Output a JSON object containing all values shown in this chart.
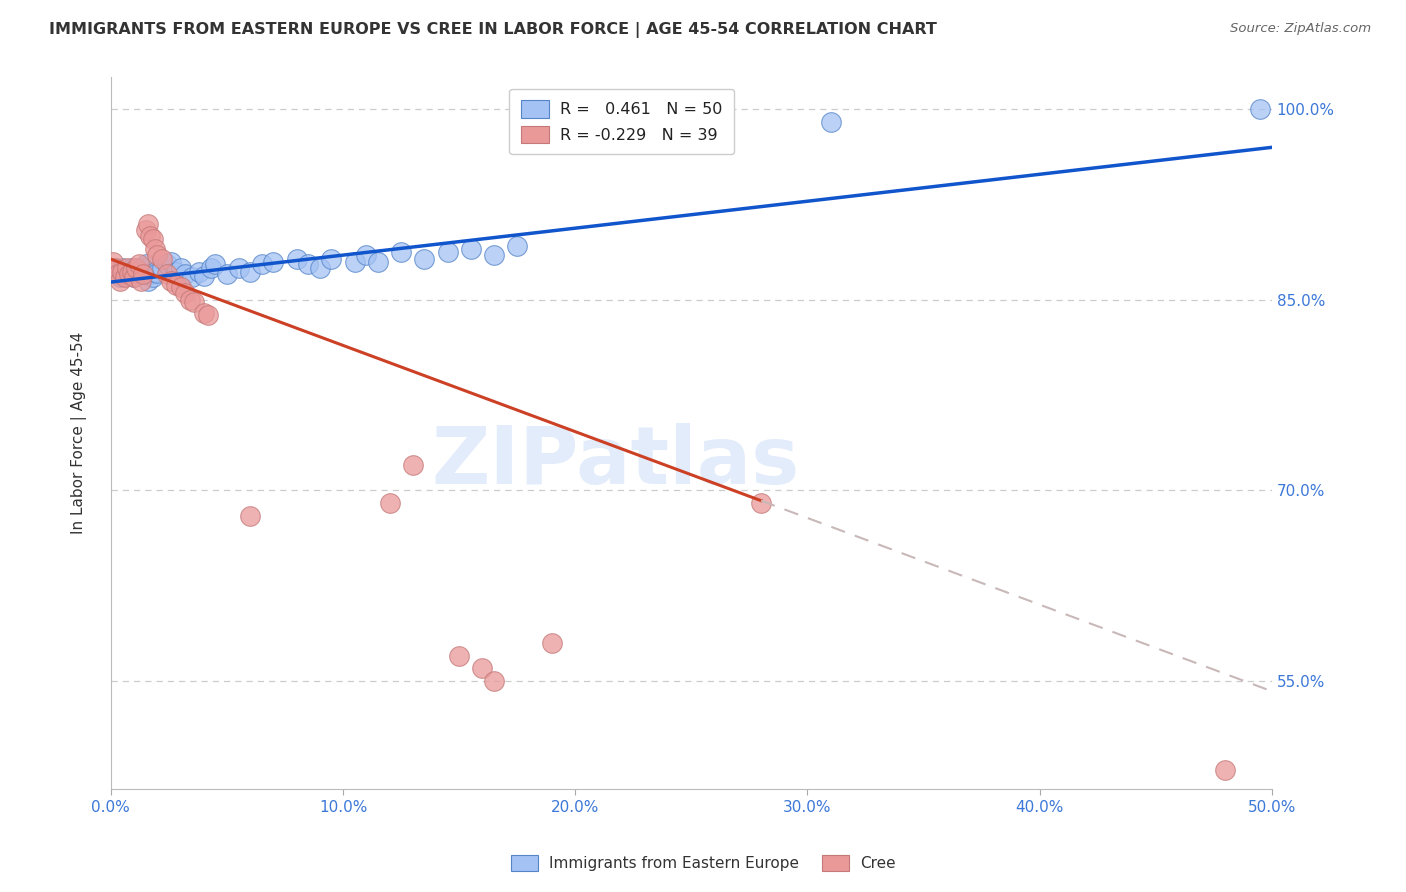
{
  "title": "IMMIGRANTS FROM EASTERN EUROPE VS CREE IN LABOR FORCE | AGE 45-54 CORRELATION CHART",
  "source_text": "Source: ZipAtlas.com",
  "ylabel": "In Labor Force | Age 45-54",
  "xlim": [
    0.0,
    0.5
  ],
  "ylim": [
    0.465,
    1.025
  ],
  "ytick_values": [
    0.55,
    0.7,
    0.85,
    1.0
  ],
  "xtick_values": [
    0.0,
    0.1,
    0.2,
    0.3,
    0.4,
    0.5
  ],
  "legend1_label": "R =   0.461   N = 50",
  "legend2_label": "R = -0.229   N = 39",
  "legend1_fill": "#a4c2f4",
  "legend2_fill": "#ea9999",
  "trend1_color": "#1155cc",
  "trend2_solid_color": "#cc4125",
  "trend2_dash_color": "#c9b8b8",
  "watermark_text": "ZIPatlas",
  "blue_dots": [
    [
      0.001,
      0.872
    ],
    [
      0.003,
      0.871
    ],
    [
      0.004,
      0.868
    ],
    [
      0.005,
      0.875
    ],
    [
      0.006,
      0.87
    ],
    [
      0.007,
      0.869
    ],
    [
      0.008,
      0.872
    ],
    [
      0.009,
      0.875
    ],
    [
      0.01,
      0.868
    ],
    [
      0.011,
      0.874
    ],
    [
      0.012,
      0.87
    ],
    [
      0.013,
      0.872
    ],
    [
      0.014,
      0.875
    ],
    [
      0.015,
      0.878
    ],
    [
      0.016,
      0.865
    ],
    [
      0.017,
      0.87
    ],
    [
      0.018,
      0.868
    ],
    [
      0.019,
      0.872
    ],
    [
      0.02,
      0.871
    ],
    [
      0.022,
      0.875
    ],
    [
      0.024,
      0.878
    ],
    [
      0.026,
      0.88
    ],
    [
      0.028,
      0.872
    ],
    [
      0.03,
      0.875
    ],
    [
      0.032,
      0.87
    ],
    [
      0.035,
      0.868
    ],
    [
      0.038,
      0.872
    ],
    [
      0.04,
      0.869
    ],
    [
      0.043,
      0.875
    ],
    [
      0.045,
      0.878
    ],
    [
      0.05,
      0.87
    ],
    [
      0.055,
      0.875
    ],
    [
      0.06,
      0.872
    ],
    [
      0.065,
      0.878
    ],
    [
      0.07,
      0.88
    ],
    [
      0.08,
      0.882
    ],
    [
      0.085,
      0.878
    ],
    [
      0.09,
      0.875
    ],
    [
      0.095,
      0.882
    ],
    [
      0.105,
      0.88
    ],
    [
      0.11,
      0.885
    ],
    [
      0.115,
      0.88
    ],
    [
      0.125,
      0.888
    ],
    [
      0.135,
      0.882
    ],
    [
      0.145,
      0.888
    ],
    [
      0.155,
      0.89
    ],
    [
      0.165,
      0.885
    ],
    [
      0.175,
      0.892
    ],
    [
      0.31,
      0.99
    ],
    [
      0.495,
      1.0
    ]
  ],
  "pink_dots": [
    [
      0.001,
      0.88
    ],
    [
      0.002,
      0.875
    ],
    [
      0.003,
      0.87
    ],
    [
      0.004,
      0.865
    ],
    [
      0.005,
      0.872
    ],
    [
      0.006,
      0.868
    ],
    [
      0.007,
      0.875
    ],
    [
      0.008,
      0.87
    ],
    [
      0.009,
      0.872
    ],
    [
      0.01,
      0.868
    ],
    [
      0.011,
      0.875
    ],
    [
      0.012,
      0.878
    ],
    [
      0.013,
      0.865
    ],
    [
      0.014,
      0.87
    ],
    [
      0.015,
      0.905
    ],
    [
      0.016,
      0.91
    ],
    [
      0.017,
      0.9
    ],
    [
      0.018,
      0.898
    ],
    [
      0.019,
      0.89
    ],
    [
      0.02,
      0.885
    ],
    [
      0.022,
      0.882
    ],
    [
      0.024,
      0.87
    ],
    [
      0.026,
      0.865
    ],
    [
      0.028,
      0.862
    ],
    [
      0.03,
      0.86
    ],
    [
      0.032,
      0.855
    ],
    [
      0.034,
      0.85
    ],
    [
      0.036,
      0.848
    ],
    [
      0.04,
      0.84
    ],
    [
      0.042,
      0.838
    ],
    [
      0.06,
      0.68
    ],
    [
      0.12,
      0.69
    ],
    [
      0.13,
      0.72
    ],
    [
      0.15,
      0.57
    ],
    [
      0.16,
      0.56
    ],
    [
      0.165,
      0.55
    ],
    [
      0.19,
      0.58
    ],
    [
      0.28,
      0.69
    ],
    [
      0.48,
      0.48
    ]
  ],
  "trend1_endpoints": [
    [
      0.0,
      0.864
    ],
    [
      0.5,
      0.97
    ]
  ],
  "trend2_solid_endpoints": [
    [
      0.0,
      0.882
    ],
    [
      0.28,
      0.692
    ]
  ],
  "trend2_dash_endpoints": [
    [
      0.28,
      0.692
    ],
    [
      0.5,
      0.542
    ]
  ]
}
